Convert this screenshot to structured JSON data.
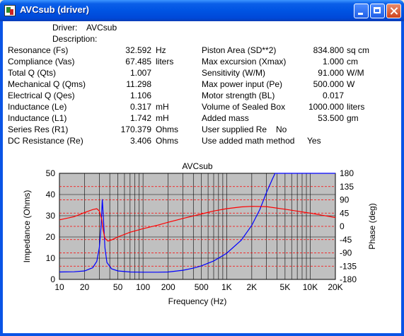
{
  "window": {
    "title": "AVCsub (driver)"
  },
  "header": {
    "driver_label": "Driver:",
    "driver_value": "AVCsub",
    "description_label": "Description:"
  },
  "left_params": [
    {
      "label": "Resonance (Fs)",
      "value": "32.592",
      "unit": "Hz"
    },
    {
      "label": "Compliance (Vas)",
      "value": "67.485",
      "unit": "liters"
    },
    {
      "label": "Total Q (Qts)",
      "value": "1.007",
      "unit": ""
    },
    {
      "label": "Mechanical Q (Qms)",
      "value": "11.298",
      "unit": ""
    },
    {
      "label": "Electrical Q (Qes)",
      "value": "1.106",
      "unit": ""
    },
    {
      "label": "Inductance (Le)",
      "value": "0.317",
      "unit": "mH"
    },
    {
      "label": "Inductance (L1)",
      "value": "1.742",
      "unit": "mH"
    },
    {
      "label": "Series Res (R1)",
      "value": "170.379",
      "unit": "Ohms"
    },
    {
      "label": "DC Resistance (Re)",
      "value": "3.406",
      "unit": "Ohms"
    }
  ],
  "right_params": [
    {
      "label": "Piston Area (SD**2)",
      "value": "834.800",
      "unit": "sq cm"
    },
    {
      "label": "Max excursion (Xmax)",
      "value": "1.000",
      "unit": "cm"
    },
    {
      "label": "Sensitivity (W/M)",
      "value": "91.000",
      "unit": "W/M"
    },
    {
      "label": "Max power input (Pe)",
      "value": "500.000",
      "unit": "W"
    },
    {
      "label": "Motor strength (BL)",
      "value": "0.017",
      "unit": ""
    },
    {
      "label": "Volume of Sealed Box",
      "value": "1000.000",
      "unit": "liters"
    },
    {
      "label": "Added mass",
      "value": "53.500",
      "unit": "gm"
    },
    {
      "label": "User supplied Re",
      "value": "No",
      "unit": ""
    },
    {
      "label": "Use added math method",
      "value": "Yes",
      "unit": ""
    }
  ],
  "chart_data": {
    "type": "line",
    "title": "AVCsub",
    "xlabel": "Frequency (Hz)",
    "ylabel": "Impedance (Ohms)",
    "y2label": "Phase (deg)",
    "x_scale": "log",
    "xlim": [
      10,
      20000
    ],
    "ylim": [
      0,
      50
    ],
    "y2lim": [
      -180,
      180
    ],
    "x_ticks": [
      10,
      20,
      50,
      100,
      200,
      500,
      1000,
      2000,
      5000,
      10000,
      20000
    ],
    "x_tick_labels": [
      "10",
      "20",
      "50",
      "100",
      "200",
      "500",
      "1K",
      "2K",
      "5K",
      "10K",
      "20K"
    ],
    "y_tick_labels": [
      "0",
      "10",
      "20",
      "30",
      "40",
      "50"
    ],
    "y2_tick_labels": [
      "-180",
      "-135",
      "-90",
      "-45",
      "0",
      "45",
      "90",
      "135",
      "180"
    ],
    "grid": true,
    "background": "#c0c0c0",
    "series": [
      {
        "name": "",
        "axis": "left",
        "color": "#0000ff",
        "points": [
          [
            10,
            3.5
          ],
          [
            15,
            3.6
          ],
          [
            20,
            4.0
          ],
          [
            25,
            5.5
          ],
          [
            28,
            8.5
          ],
          [
            30,
            15
          ],
          [
            31.5,
            25
          ],
          [
            32.6,
            37.8
          ],
          [
            33.5,
            30
          ],
          [
            35,
            15
          ],
          [
            37,
            8
          ],
          [
            42,
            5
          ],
          [
            50,
            4
          ],
          [
            70,
            3.5
          ],
          [
            100,
            3.4
          ],
          [
            150,
            3.4
          ],
          [
            200,
            3.5
          ],
          [
            300,
            4.3
          ],
          [
            400,
            5.3
          ],
          [
            500,
            6.4
          ],
          [
            700,
            8.7
          ],
          [
            1000,
            12.3
          ],
          [
            1500,
            18.5
          ],
          [
            2000,
            25.5
          ],
          [
            2500,
            33
          ],
          [
            3000,
            41
          ],
          [
            3500,
            47
          ],
          [
            3800,
            50
          ],
          [
            20000,
            50
          ]
        ]
      },
      {
        "name": "",
        "axis": "right",
        "color": "#ff0000",
        "points": [
          [
            10,
            22
          ],
          [
            15,
            33
          ],
          [
            20,
            47
          ],
          [
            25,
            57
          ],
          [
            28,
            60
          ],
          [
            30,
            52
          ],
          [
            32,
            25
          ],
          [
            33.5,
            -15
          ],
          [
            35,
            -40
          ],
          [
            38,
            -50
          ],
          [
            42,
            -46
          ],
          [
            50,
            -36
          ],
          [
            70,
            -20
          ],
          [
            100,
            -8
          ],
          [
            150,
            4
          ],
          [
            200,
            14
          ],
          [
            300,
            27
          ],
          [
            500,
            42
          ],
          [
            700,
            52
          ],
          [
            1000,
            60
          ],
          [
            1500,
            66
          ],
          [
            2000,
            68
          ],
          [
            3000,
            67
          ],
          [
            5000,
            58
          ],
          [
            10000,
            45
          ],
          [
            20000,
            30
          ]
        ]
      }
    ]
  }
}
